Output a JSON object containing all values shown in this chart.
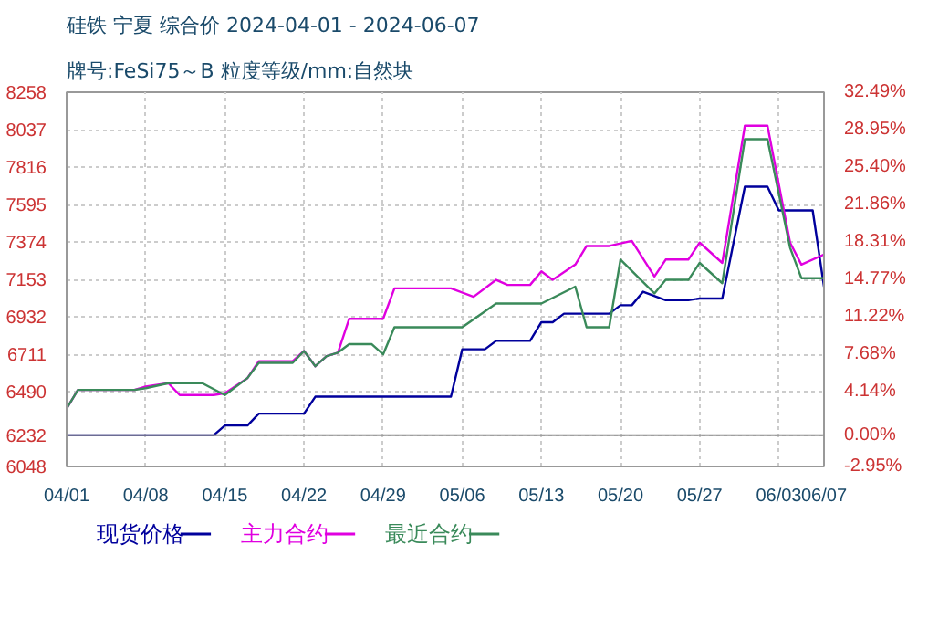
{
  "chart_data": {
    "type": "line",
    "title": "硅铁 宁夏 综合价 2024-04-01 - 2024-06-07",
    "subtitle": "牌号:FeSi75～B 粒度等级/mm:自然块",
    "series": [
      {
        "name": "现货价格",
        "color": "#00009c",
        "x": [
          "2024-04-01",
          "2024-04-14",
          "2024-04-15",
          "2024-04-17",
          "2024-04-18",
          "2024-04-22",
          "2024-04-23",
          "2024-05-05",
          "2024-05-06",
          "2024-05-08",
          "2024-05-09",
          "2024-05-12",
          "2024-05-13",
          "2024-05-14",
          "2024-05-15",
          "2024-05-19",
          "2024-05-20",
          "2024-05-21",
          "2024-05-22",
          "2024-05-24",
          "2024-05-26",
          "2024-05-27",
          "2024-05-29",
          "2024-05-31",
          "2024-06-02",
          "2024-06-03",
          "2024-06-06",
          "2024-06-07"
        ],
        "values": [
          6232,
          6232,
          6290,
          6290,
          6360,
          6360,
          6460,
          6460,
          6740,
          6740,
          6790,
          6790,
          6900,
          6900,
          6950,
          6950,
          7000,
          7000,
          7080,
          7030,
          7030,
          7040,
          7040,
          7700,
          7700,
          7560,
          7560,
          7110
        ]
      },
      {
        "name": "主力合约",
        "color": "#e000e0",
        "x": [
          "2024-04-01",
          "2024-04-02",
          "2024-04-07",
          "2024-04-08",
          "2024-04-10",
          "2024-04-11",
          "2024-04-14",
          "2024-04-15",
          "2024-04-17",
          "2024-04-18",
          "2024-04-21",
          "2024-04-22",
          "2024-04-23",
          "2024-04-24",
          "2024-04-25",
          "2024-04-26",
          "2024-04-29",
          "2024-04-30",
          "2024-05-05",
          "2024-05-07",
          "2024-05-09",
          "2024-05-10",
          "2024-05-12",
          "2024-05-13",
          "2024-05-14",
          "2024-05-16",
          "2024-05-17",
          "2024-05-19",
          "2024-05-21",
          "2024-05-23",
          "2024-05-24",
          "2024-05-26",
          "2024-05-27",
          "2024-05-29",
          "2024-05-31",
          "2024-06-02",
          "2024-06-04",
          "2024-06-05",
          "2024-06-07"
        ],
        "values": [
          6390,
          6500,
          6500,
          6520,
          6540,
          6470,
          6470,
          6480,
          6570,
          6670,
          6670,
          6730,
          6640,
          6700,
          6720,
          6920,
          6920,
          7100,
          7100,
          7050,
          7150,
          7120,
          7120,
          7200,
          7150,
          7240,
          7350,
          7350,
          7380,
          7170,
          7270,
          7270,
          7370,
          7250,
          8060,
          8060,
          7370,
          7240,
          7300
        ]
      },
      {
        "name": "最近合约",
        "color": "#3a8a5a",
        "x": [
          "2024-04-01",
          "2024-04-02",
          "2024-04-07",
          "2024-04-08",
          "2024-04-10",
          "2024-04-13",
          "2024-04-15",
          "2024-04-17",
          "2024-04-18",
          "2024-04-21",
          "2024-04-22",
          "2024-04-23",
          "2024-04-24",
          "2024-04-25",
          "2024-04-26",
          "2024-04-28",
          "2024-04-29",
          "2024-04-30",
          "2024-05-06",
          "2024-05-09",
          "2024-05-13",
          "2024-05-16",
          "2024-05-17",
          "2024-05-19",
          "2024-05-20",
          "2024-05-23",
          "2024-05-24",
          "2024-05-26",
          "2024-05-27",
          "2024-05-29",
          "2024-05-31",
          "2024-06-02",
          "2024-06-04",
          "2024-06-05",
          "2024-06-07"
        ],
        "values": [
          6390,
          6500,
          6500,
          6510,
          6540,
          6540,
          6470,
          6570,
          6660,
          6660,
          6730,
          6640,
          6700,
          6720,
          6770,
          6770,
          6710,
          6870,
          6870,
          7010,
          7010,
          7110,
          6870,
          6870,
          7270,
          7070,
          7150,
          7150,
          7250,
          7130,
          7980,
          7980,
          7340,
          7160,
          7160
        ]
      }
    ],
    "xlim": [
      "2024-04-01",
      "2024-06-07"
    ],
    "xticks": [
      {
        "value": "2024-04-01",
        "label": "04/01"
      },
      {
        "value": "2024-04-08",
        "label": "04/08"
      },
      {
        "value": "2024-04-15",
        "label": "04/15"
      },
      {
        "value": "2024-04-22",
        "label": "04/22"
      },
      {
        "value": "2024-04-29",
        "label": "04/29"
      },
      {
        "value": "2024-05-06",
        "label": "05/06"
      },
      {
        "value": "2024-05-13",
        "label": "05/13"
      },
      {
        "value": "2024-05-20",
        "label": "05/20"
      },
      {
        "value": "2024-05-27",
        "label": "05/27"
      },
      {
        "value": "2024-06-03",
        "label": "06/03"
      },
      {
        "value": "2024-06-07",
        "label": "06/07"
      }
    ],
    "ylim": [
      6048,
      8258
    ],
    "yticks": [
      6048,
      6232,
      6490,
      6711,
      6932,
      7153,
      7374,
      7595,
      7816,
      8037,
      8258
    ],
    "y2lim": [
      -2.95,
      32.49
    ],
    "y2ticks": [
      {
        "value": -2.95,
        "label": "-2.95%"
      },
      {
        "value": 0,
        "label": "0.00%"
      },
      {
        "value": 4.14,
        "label": "4.14%"
      },
      {
        "value": 7.68,
        "label": "7.68%"
      },
      {
        "value": 11.22,
        "label": "11.22%"
      },
      {
        "value": 14.77,
        "label": "14.77%"
      },
      {
        "value": 18.31,
        "label": "18.31%"
      },
      {
        "value": 21.86,
        "label": "21.86%"
      },
      {
        "value": 25.4,
        "label": "25.40%"
      },
      {
        "value": 28.95,
        "label": "28.95%"
      },
      {
        "value": 32.49,
        "label": "32.49%"
      }
    ],
    "ref_lines": [
      {
        "axis": "y",
        "value": 6232,
        "color": "#909090"
      }
    ],
    "grid": true,
    "legend": "bottom",
    "marker": "none",
    "line_style": "solid"
  }
}
